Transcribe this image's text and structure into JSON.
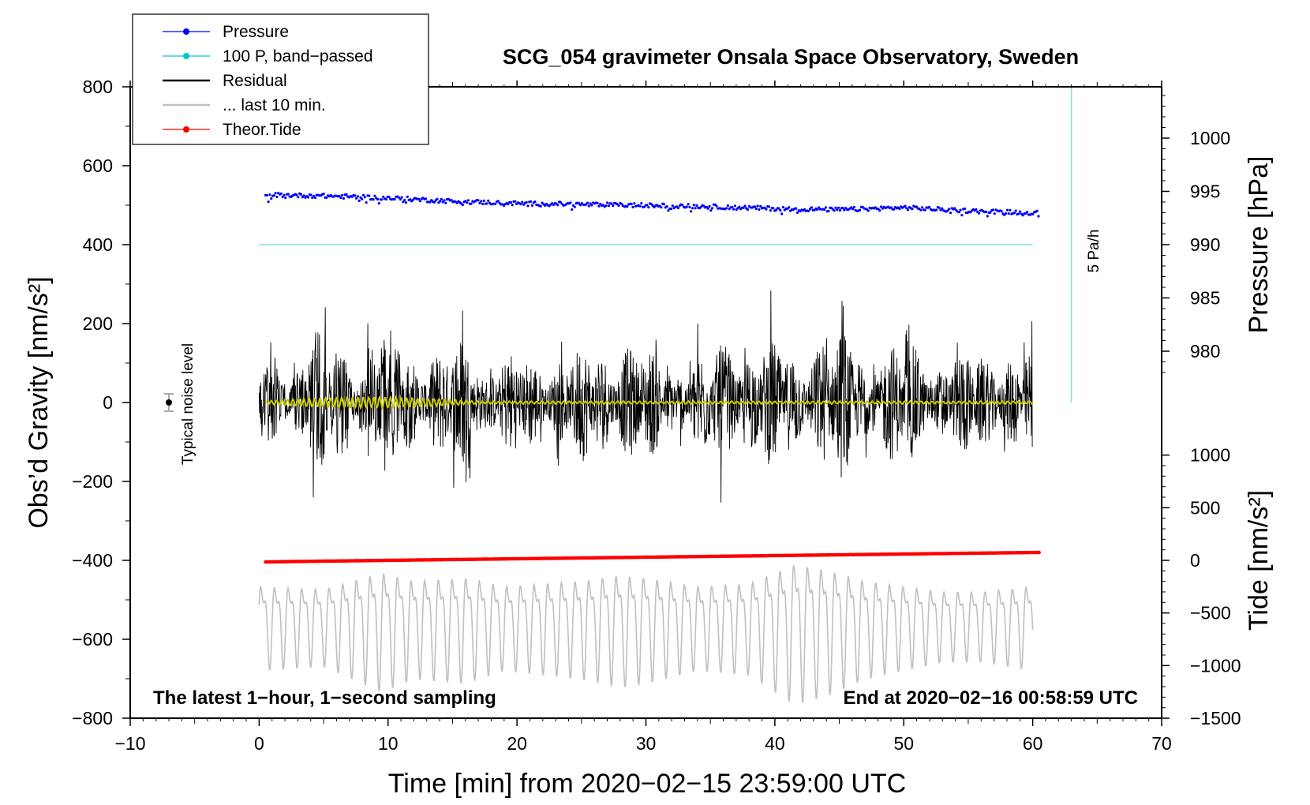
{
  "chart_data": {
    "type": "line",
    "title": "SCG_054 gravimeter Onsala Space Observatory, Sweden",
    "xlabel": "Time [min] from 2020−02−15 23:59:00 UTC",
    "ylabel_left": "Obs’d Gravity [nm/s²]",
    "ylabel_right_top": "Pressure [hPa]",
    "ylabel_right_bottom": "Tide [nm/s²]",
    "xlim": [
      -10,
      70
    ],
    "ylim": [
      -800,
      800
    ],
    "xticks": [
      -10,
      0,
      10,
      20,
      30,
      40,
      50,
      60,
      70
    ],
    "xtick_labels": [
      "−10",
      "0",
      "10",
      "20",
      "30",
      "40",
      "50",
      "60",
      "70"
    ],
    "yticks": [
      800,
      600,
      400,
      200,
      0,
      -200,
      -400,
      -600,
      -800
    ],
    "ytick_labels": [
      "800",
      "600",
      "400",
      "200",
      "0",
      "−200",
      "−400",
      "−600",
      "−800"
    ],
    "pressure_axis": {
      "ticks": [
        1000,
        995,
        990,
        985,
        980
      ],
      "labels": [
        "1000",
        "995",
        "990",
        "985",
        "980"
      ],
      "gravity_at_990": 400,
      "gravity_per_hpa": 27
    },
    "tide_axis": {
      "ticks": [
        1000,
        500,
        0,
        -500,
        -1000,
        -1500
      ],
      "labels": [
        "1000",
        "500",
        "0",
        "−500",
        "−1000",
        "−1500"
      ],
      "gravity_at_0": -400,
      "gravity_per_unit": 0.2667
    },
    "legend": [
      {
        "label": "Pressure",
        "color": "#0000ff",
        "marker": "dot"
      },
      {
        "label": "100 P, band−passed",
        "color": "#00c8c8",
        "marker": "dot"
      },
      {
        "label": "Residual",
        "color": "#000000",
        "marker": "line"
      },
      {
        "label": "... last 10 min.",
        "color": "#c0c0c0",
        "marker": "line"
      },
      {
        "label": "Theor.Tide",
        "color": "#ff0000",
        "marker": "dot"
      }
    ],
    "series": [
      {
        "name": "Pressure",
        "unit": "hPa",
        "x": [
          0.5,
          5,
          10,
          15,
          20,
          25,
          30,
          35,
          40,
          45,
          50,
          55,
          60.5
        ],
        "values": [
          994.7,
          994.6,
          994.4,
          994.1,
          993.9,
          993.8,
          993.7,
          993.6,
          993.4,
          993.3,
          993.5,
          993.2,
          993.0
        ],
        "scatter": 0.4,
        "color": "#0000ff"
      },
      {
        "name": "100 P, band−passed",
        "gravity_value": 400,
        "x": [
          0,
          60
        ],
        "color": "#7fe0e0"
      },
      {
        "name": "Residual",
        "x_range": [
          0,
          60
        ],
        "envelope_x": [
          0,
          2.5,
          4.5,
          7,
          9.5,
          12,
          14,
          16,
          18,
          20,
          22,
          24,
          26,
          28,
          30,
          32,
          34,
          37,
          40,
          42,
          45,
          48,
          51,
          54,
          57,
          60
        ],
        "envelope_values": [
          160,
          180,
          280,
          200,
          300,
          240,
          200,
          270,
          170,
          200,
          180,
          190,
          240,
          250,
          200,
          200,
          190,
          260,
          230,
          240,
          280,
          230,
          220,
          190,
          200,
          200
        ],
        "color": "#000000"
      },
      {
        "name": "Residual band−passed",
        "x_range": [
          0.5,
          60
        ],
        "color": "#c8c800"
      },
      {
        "name": "... last 10 min.",
        "x_range": [
          0,
          60
        ],
        "center": -550,
        "amplitude_x": [
          0,
          5,
          9.5,
          12,
          16,
          19,
          22,
          25,
          28,
          30,
          34,
          38,
          41.5,
          44,
          47,
          50,
          53,
          56,
          60
        ],
        "amplitude_values": [
          120,
          110,
          170,
          140,
          150,
          120,
          130,
          140,
          160,
          150,
          120,
          130,
          200,
          180,
          140,
          120,
          100,
          100,
          120
        ],
        "color": "#c0c0c0"
      },
      {
        "name": "Theor.Tide",
        "unit": "nm/s²",
        "x": [
          0.5,
          10,
          20,
          30,
          40,
          50,
          60.5
        ],
        "values": [
          -15,
          0,
          15,
          30,
          45,
          60,
          75
        ],
        "color": "#ff0000"
      },
      {
        "name": "Typical noise level",
        "x": -7,
        "y": 0,
        "error": 22,
        "color": "#000000"
      }
    ],
    "annotations": {
      "noise_label": "Typical noise level",
      "rate_label": "5 Pa/h",
      "rate_line_x": 63,
      "rate_line_y": [
        0,
        800
      ],
      "note_left": "The latest 1−hour, 1−second sampling",
      "note_right": "End at 2020−02−16 00:58:59 UTC"
    }
  }
}
